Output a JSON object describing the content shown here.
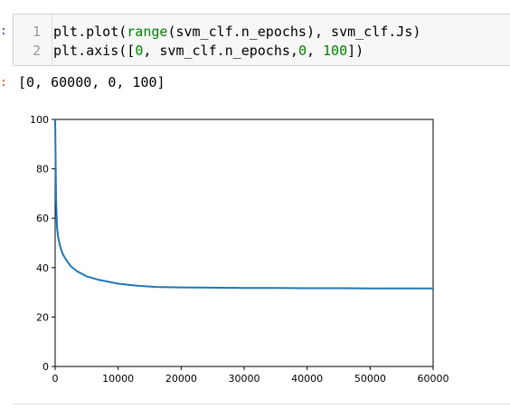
{
  "cell": {
    "prompt": ":",
    "lines": [
      {
        "number": "1",
        "parts": [
          "plt.plot(",
          "range",
          "(svm_clf.n_epochs), svm_clf.Js)"
        ]
      },
      {
        "number": "2",
        "parts": [
          "plt.axis([",
          "0",
          ", svm_clf.n_epochs,",
          "0",
          ", ",
          "100",
          "])"
        ]
      }
    ]
  },
  "output": {
    "prompt": ":",
    "text": "[0, 60000, 0, 100]"
  },
  "chart_data": {
    "type": "line",
    "title": "",
    "xlabel": "",
    "ylabel": "",
    "xlim": [
      0,
      60000
    ],
    "ylim": [
      0,
      100
    ],
    "x_ticks": [
      "0",
      "10000",
      "20000",
      "30000",
      "40000",
      "50000",
      "60000"
    ],
    "y_ticks": [
      "0",
      "20",
      "40",
      "60",
      "80",
      "100"
    ],
    "grid": false,
    "line_color": "#1f77b4",
    "series": [
      {
        "x": [
          0,
          150,
          300,
          500,
          800,
          1200,
          1800,
          2500,
          3500,
          5000,
          7000,
          10000,
          13000,
          16000,
          20000,
          25000,
          30000,
          35000,
          40000,
          45000,
          50000,
          55000,
          60000
        ],
        "values": [
          100,
          68,
          56,
          52,
          48.5,
          45.5,
          43,
          40.5,
          38.5,
          36.5,
          35,
          33.5,
          32.7,
          32.2,
          32,
          31.9,
          31.8,
          31.8,
          31.7,
          31.7,
          31.6,
          31.6,
          31.6
        ]
      }
    ]
  }
}
